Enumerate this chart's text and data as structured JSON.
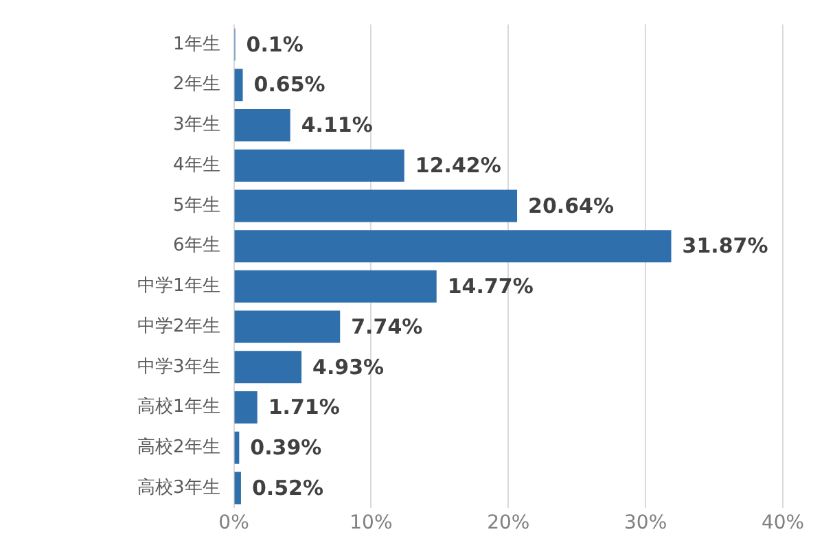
{
  "chart_data": {
    "type": "bar",
    "orientation": "horizontal",
    "categories": [
      "1年生",
      "2年生",
      "3年生",
      "4年生",
      "5年生",
      "6年生",
      "中学1年生",
      "中学2年生",
      "中学3年生",
      "高校1年生",
      "高校2年生",
      "高校3年生"
    ],
    "values": [
      0.1,
      0.65,
      4.11,
      12.42,
      20.64,
      31.87,
      14.77,
      7.74,
      4.93,
      1.71,
      0.39,
      0.52
    ],
    "value_labels": [
      "0.1%",
      "0.65%",
      "4.11%",
      "12.42%",
      "20.64%",
      "31.87%",
      "14.77%",
      "7.74%",
      "4.93%",
      "1.71%",
      "0.39%",
      "0.52%"
    ],
    "color": "#2e6fac",
    "xlim": [
      0,
      40
    ],
    "xticks": [
      {
        "value": 0,
        "label": "0%"
      },
      {
        "value": 10,
        "label": "10%"
      },
      {
        "value": 20,
        "label": "20%"
      },
      {
        "value": 30,
        "label": "30%"
      },
      {
        "value": 40,
        "label": "40%"
      }
    ],
    "grid": "x",
    "legend": false
  }
}
